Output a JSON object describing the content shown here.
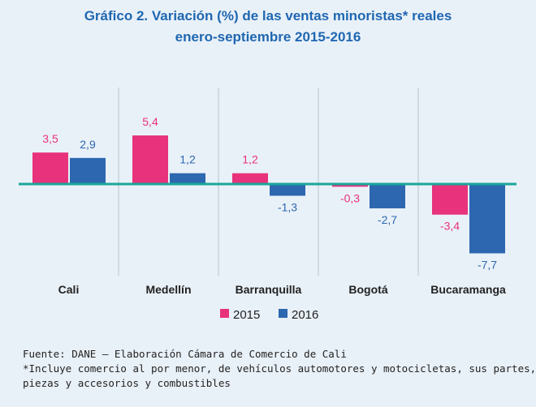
{
  "chart_data": {
    "type": "bar",
    "title_line1": "Gráfico 2. Variación (%) de las ventas minoristas* reales",
    "title_line2": "enero-septiembre 2015-2016",
    "categories": [
      "Cali",
      "Medellín",
      "Barranquilla",
      "Bogotá",
      "Bucaramanga"
    ],
    "series": [
      {
        "name": "2015",
        "color": "#e8327c",
        "values": [
          3.5,
          5.4,
          1.2,
          -0.3,
          -3.4
        ],
        "labels": [
          "3,5",
          "5,4",
          "1,2",
          "-0,3",
          "-3,4"
        ]
      },
      {
        "name": "2016",
        "color": "#2c67b0",
        "values": [
          2.9,
          1.2,
          -1.3,
          -2.7,
          -7.7
        ],
        "labels": [
          "2,9",
          "1,2",
          "-1,3",
          "-2,7",
          "-7,7"
        ]
      }
    ],
    "baseline_color": "#1aa79a",
    "xlabel": "",
    "ylabel": "",
    "legend": "bottom-center",
    "grid": false
  },
  "footnotes": {
    "source": "Fuente: DANE – Elaboración Cámara de Comercio de Cali",
    "note_line1": "*Incluye comercio al por menor, de vehículos automotores y motocicletas, sus partes,",
    "note_line2": "piezas y accesorios y combustibles"
  }
}
